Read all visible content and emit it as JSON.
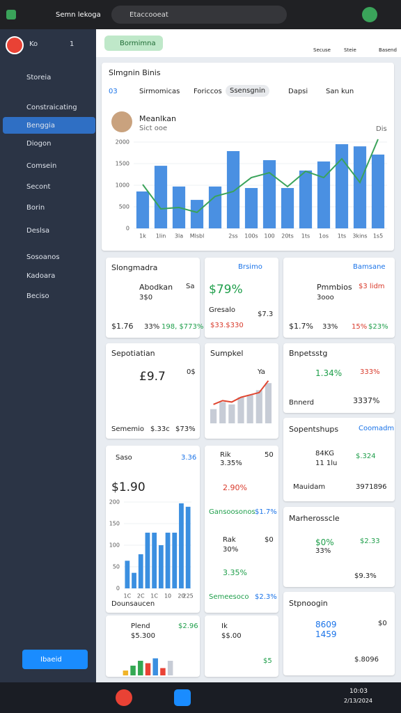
{
  "browser": {
    "tab_title": "Semn lekoga",
    "address": "Etaccooeat"
  },
  "sidebar": {
    "brand": "Ko",
    "tab": "1",
    "items": [
      "Storeia",
      "Constraicating",
      "Benggia",
      "Diogon",
      "Comsein",
      "Secont",
      "Borin",
      "Deslsa",
      "Sosoanos",
      "Kadoara",
      "Beciso"
    ],
    "button": "Ibaeid"
  },
  "header": {
    "chip": "Bormimna",
    "actions": [
      "Secuse",
      "Steie",
      "Basend"
    ]
  },
  "overview": {
    "title": "Slmgnin Binis",
    "tabs": [
      "03",
      "Sirmomicas",
      "Foriccos",
      "Ssensgnin",
      "Dapsi",
      "San kun"
    ],
    "person": "Meanlkan",
    "person_sub": "Sict ooe",
    "badge": "Dis"
  },
  "cards": [
    [
      "Slongmadra",
      "Abodkan",
      "Sa",
      "3$0",
      "$1.76",
      "33%",
      "198, $773%"
    ],
    [
      "Brsimo",
      "$79%",
      "Gresalo",
      "$7.3",
      "$33.$330"
    ],
    [
      "Bamsane",
      "Pmmbios",
      "$3 lidm",
      "3ooo",
      "$1.7%",
      "33%",
      "15%",
      "$23%"
    ],
    [
      "Sepotiatian",
      "£9.7",
      "0$",
      "Sememio",
      "$.33c",
      "$73%"
    ],
    [
      "Sumpkel",
      "Ya"
    ],
    [
      "Bnpetsstg",
      "1.34%",
      "333%",
      "Bnnerd",
      "3337%"
    ],
    [
      "Sopentshups",
      "Coomadm",
      "84KG",
      "11 1lu",
      "$.324",
      "Mauidam",
      "3971896"
    ],
    [
      "Saso",
      "3.36",
      "$1.90",
      "Dounsaucen"
    ],
    [
      "Rik",
      "3.35%",
      "50",
      "2.90%",
      "Gansoosonos",
      "$1.7%",
      "Rak",
      "30%",
      "$0",
      "3.35%",
      "Semeesoco",
      "$2.3%"
    ],
    [
      "Marherosscle",
      "$0%",
      "$2.33",
      "33%",
      "$9.3%"
    ],
    [
      "Stpnoogin",
      "8609",
      "1459",
      "$0",
      "$.8096"
    ],
    [
      "Plend",
      "$2.96",
      "$5.300"
    ],
    [
      "Ik",
      "$$.00",
      "$5"
    ]
  ],
  "taskbar": {
    "time": "10:03",
    "date": "2/13/2024"
  },
  "chart_data": [
    {
      "type": "bar",
      "categories": [
        "1k",
        "1lin",
        "3la",
        "Mlsbl",
        null,
        "2ss",
        "100s",
        "100",
        "20ts",
        "1ts",
        "1os",
        "1ts",
        "3kins",
        "1s5"
      ],
      "values": [
        855,
        1450,
        970,
        660,
        970,
        1790,
        935,
        1580,
        935,
        1340,
        1550,
        1950,
        1900,
        1710
      ],
      "color": "#4a90e2",
      "line_values": [
        1016,
        452,
        484,
        371,
        742,
        855,
        1177,
        1290,
        968,
        1323,
        1177,
        1613,
        1065,
        2065
      ],
      "line_color": "#3aa35a",
      "ylim": [
        0,
        2500
      ],
      "yticks": [
        0,
        500,
        1000,
        1500,
        2000
      ]
    },
    {
      "type": "bar",
      "categories": [
        "1C",
        null,
        "2C",
        null,
        "1C",
        null,
        "10",
        null,
        "20",
        "225"
      ],
      "values": [
        64,
        36,
        79,
        129,
        129,
        100,
        129,
        129,
        197,
        189
      ],
      "color": "#3b8fe0",
      "ylim": [
        0,
        200
      ],
      "yticks": [
        0,
        50,
        100,
        150,
        200
      ]
    },
    {
      "type": "bar",
      "values": [
        30,
        45,
        40,
        55,
        60,
        70,
        85
      ],
      "color": "#c7ccd6",
      "line_values": [
        40,
        48,
        45,
        55,
        60,
        65,
        90
      ],
      "line_color": "#e0452f",
      "ylim": [
        0,
        100
      ]
    },
    {
      "type": "bar",
      "values": [
        20,
        40,
        60,
        50,
        70,
        30,
        60
      ],
      "colors": [
        "#f0b429",
        "#34a853",
        "#34a853",
        "#e94235",
        "#3b8fe0",
        "#e94235",
        "#c7ccd6"
      ],
      "ylim": [
        0,
        100
      ]
    }
  ]
}
